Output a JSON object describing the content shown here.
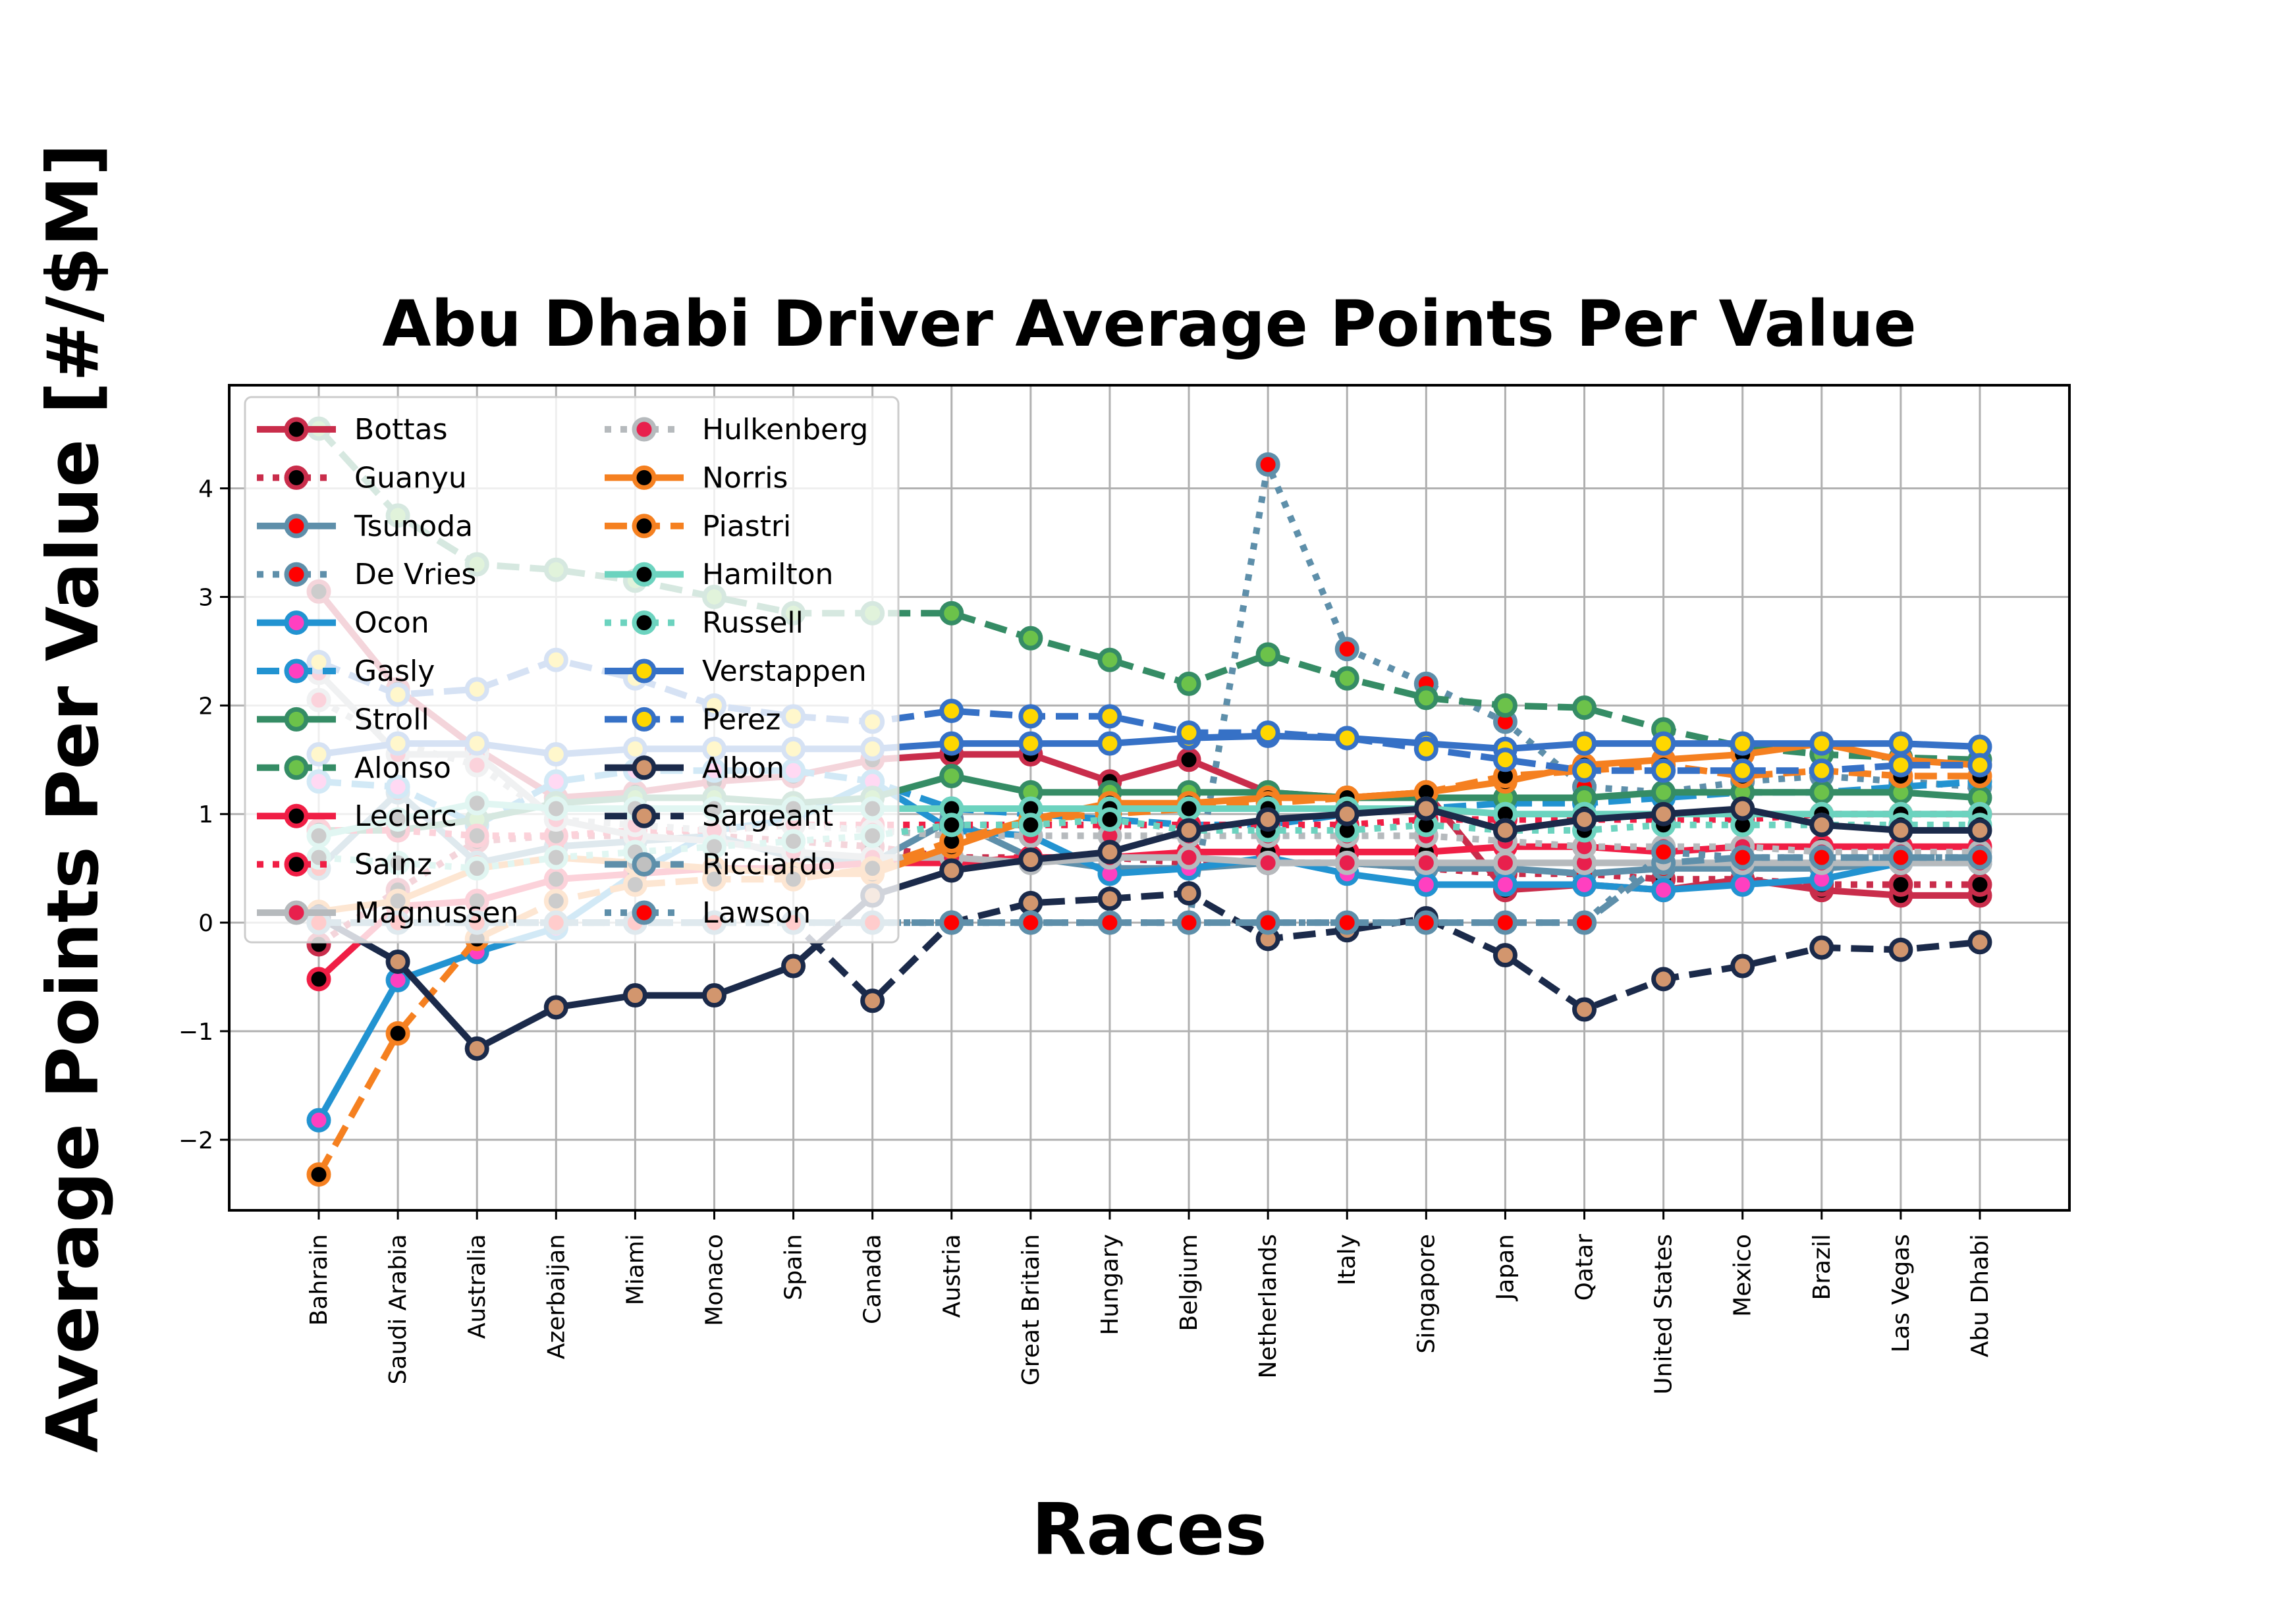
{
  "chart_data": {
    "type": "line",
    "title": "Abu Dhabi Driver Average Points Per Value",
    "xlabel": "Races",
    "ylabel": "Average Points Per Value [#/$M]",
    "ylim": [
      -2.65,
      4.95
    ],
    "yticks": [
      -2,
      -1,
      0,
      1,
      2,
      3,
      4
    ],
    "ytick_labels": [
      "−2",
      "−1",
      "0",
      "1",
      "2",
      "3",
      "4"
    ],
    "grid": true,
    "legend_placement": "top-left",
    "categories": [
      "Bahrain",
      "Saudi Arabia",
      "Australia",
      "Azerbaijan",
      "Miami",
      "Monaco",
      "Spain",
      "Canada",
      "Austria",
      "Great Britain",
      "Hungary",
      "Belgium",
      "Netherlands",
      "Italy",
      "Singapore",
      "Japan",
      "Qatar",
      "United States",
      "Mexico",
      "Brazil",
      "Las Vegas",
      "Abu Dhabi"
    ],
    "series": [
      {
        "name": "Bottas",
        "color": "#c92d4b",
        "marker_face": "#000000",
        "dash": "solid",
        "values": [
          3.05,
          2.15,
          1.6,
          1.15,
          1.2,
          1.3,
          1.35,
          1.5,
          1.55,
          1.55,
          1.3,
          1.5,
          1.2,
          1.15,
          1.2,
          0.3,
          0.35,
          0.3,
          0.4,
          0.3,
          0.25,
          0.25
        ]
      },
      {
        "name": "Guanyu",
        "color": "#c92d4b",
        "marker_face": "#000000",
        "dash": "dotted",
        "values": [
          -0.2,
          0.3,
          0.75,
          0.8,
          0.8,
          0.8,
          0.75,
          0.7,
          0.6,
          0.6,
          0.6,
          0.55,
          0.55,
          0.55,
          0.5,
          0.45,
          0.45,
          0.4,
          0.4,
          0.35,
          0.35,
          0.35
        ]
      },
      {
        "name": "Tsunoda",
        "color": "#5e8faa",
        "marker_face": "#ff0000",
        "dash": "solid",
        "values": [
          0.5,
          1.2,
          0.55,
          0.7,
          0.75,
          0.8,
          0.6,
          0.55,
          0.95,
          0.6,
          0.5,
          0.5,
          0.55,
          0.55,
          0.5,
          0.5,
          0.45,
          0.5,
          0.5,
          0.5,
          0.55,
          0.55
        ]
      },
      {
        "name": "De Vries",
        "color": "#5e8faa",
        "marker_face": "#ff0000",
        "dash": "dotted",
        "values": [
          0.0,
          0.0,
          0.0,
          0.0,
          0.0,
          0.0,
          0.0,
          0.0,
          0.0,
          0.0,
          0.0,
          0.0,
          4.22,
          2.52,
          2.2,
          1.85,
          1.25,
          1.2,
          1.3,
          1.35,
          1.3,
          1.25
        ]
      },
      {
        "name": "Ocon",
        "color": "#2293d1",
        "marker_face": "#ff40c0",
        "dash": "solid",
        "values": [
          -1.82,
          -0.53,
          -0.27,
          -0.05,
          0.45,
          0.85,
          0.95,
          1.3,
          0.85,
          0.8,
          0.45,
          0.5,
          0.6,
          0.45,
          0.35,
          0.35,
          0.35,
          0.3,
          0.35,
          0.4,
          0.55,
          0.55
        ]
      },
      {
        "name": "Gasly",
        "color": "#2293d1",
        "marker_face": "#ff40c0",
        "dash": "dashed",
        "values": [
          1.3,
          1.25,
          0.9,
          1.3,
          1.4,
          1.4,
          1.4,
          1.3,
          1.05,
          1.0,
          0.95,
          0.9,
          0.9,
          1.0,
          1.05,
          1.1,
          1.1,
          1.15,
          1.2,
          1.2,
          1.25,
          1.3
        ]
      },
      {
        "name": "Stroll",
        "color": "#358c65",
        "marker_face": "#6cc24a",
        "dash": "solid",
        "values": [
          0.85,
          0.85,
          0.95,
          1.1,
          1.15,
          1.15,
          1.1,
          1.15,
          1.35,
          1.2,
          1.2,
          1.2,
          1.2,
          1.15,
          1.15,
          1.15,
          1.15,
          1.2,
          1.2,
          1.2,
          1.2,
          1.15
        ]
      },
      {
        "name": "Alonso",
        "color": "#358c65",
        "marker_face": "#6cc24a",
        "dash": "dashed",
        "values": [
          4.55,
          3.75,
          3.3,
          3.25,
          3.15,
          3.0,
          2.85,
          2.85,
          2.85,
          2.62,
          2.42,
          2.2,
          2.47,
          2.25,
          2.07,
          2.0,
          1.98,
          1.78,
          1.62,
          1.55,
          1.52,
          1.5
        ]
      },
      {
        "name": "Leclerc",
        "color": "#f01e45",
        "marker_face": "#000000",
        "dash": "solid",
        "values": [
          -0.52,
          0.15,
          0.2,
          0.4,
          0.45,
          0.5,
          0.5,
          0.55,
          0.55,
          0.6,
          0.6,
          0.65,
          0.65,
          0.65,
          0.65,
          0.7,
          0.7,
          0.65,
          0.7,
          0.7,
          0.7,
          0.7
        ]
      },
      {
        "name": "Sainz",
        "color": "#f01e45",
        "marker_face": "#000000",
        "dash": "dotted",
        "values": [
          0.85,
          0.85,
          0.8,
          0.8,
          0.85,
          0.85,
          0.9,
          0.9,
          0.9,
          0.9,
          0.9,
          0.9,
          0.9,
          0.9,
          0.95,
          0.95,
          0.95,
          0.95,
          0.95,
          1.0,
          1.0,
          1.0
        ]
      },
      {
        "name": "Magnussen",
        "color": "#b6babd",
        "marker_face": "#e8204d",
        "dash": "solid",
        "values": [
          2.3,
          1.55,
          1.55,
          0.95,
          0.8,
          0.75,
          0.65,
          0.6,
          0.6,
          0.55,
          0.6,
          0.6,
          0.55,
          0.55,
          0.55,
          0.55,
          0.55,
          0.55,
          0.55,
          0.55,
          0.55,
          0.55
        ]
      },
      {
        "name": "Hulkenberg",
        "color": "#b6babd",
        "marker_face": "#e8204d",
        "dash": "dotted",
        "values": [
          2.05,
          1.65,
          1.45,
          0.95,
          0.9,
          0.85,
          0.9,
          0.85,
          0.8,
          0.8,
          0.8,
          0.8,
          0.8,
          0.8,
          0.8,
          0.75,
          0.7,
          0.7,
          0.7,
          0.65,
          0.65,
          0.65
        ]
      },
      {
        "name": "Norris",
        "color": "#f58020",
        "marker_face": "#000000",
        "dash": "solid",
        "values": [
          0.1,
          0.2,
          0.5,
          0.6,
          0.55,
          0.5,
          0.45,
          0.45,
          0.7,
          0.95,
          1.1,
          1.1,
          1.15,
          1.15,
          1.2,
          1.3,
          1.45,
          1.5,
          1.55,
          1.65,
          1.5,
          1.45
        ]
      },
      {
        "name": "Piastri",
        "color": "#f58020",
        "marker_face": "#000000",
        "dash": "dashed",
        "values": [
          -2.32,
          -1.02,
          -0.15,
          0.2,
          0.35,
          0.4,
          0.4,
          0.5,
          0.75,
          0.95,
          1.0,
          1.05,
          1.1,
          1.15,
          1.2,
          1.35,
          1.4,
          1.45,
          1.35,
          1.4,
          1.35,
          1.35
        ]
      },
      {
        "name": "Hamilton",
        "color": "#6cd3bf",
        "marker_face": "#000000",
        "dash": "solid",
        "values": [
          0.8,
          0.95,
          1.1,
          1.05,
          1.05,
          1.05,
          1.05,
          1.05,
          1.05,
          1.05,
          1.05,
          1.05,
          1.05,
          1.05,
          1.05,
          1.0,
          1.0,
          1.0,
          1.0,
          1.0,
          1.0,
          1.0
        ]
      },
      {
        "name": "Russell",
        "color": "#6cd3bf",
        "marker_face": "#000000",
        "dash": "dotted",
        "values": [
          0.6,
          0.55,
          0.5,
          0.6,
          0.65,
          0.7,
          0.75,
          0.8,
          0.9,
          0.9,
          0.95,
          0.85,
          0.85,
          0.85,
          0.9,
          0.85,
          0.85,
          0.9,
          0.9,
          0.9,
          0.9,
          0.9
        ]
      },
      {
        "name": "Verstappen",
        "color": "#3671c6",
        "marker_face": "#ffd700",
        "dash": "solid",
        "values": [
          1.55,
          1.65,
          1.65,
          1.55,
          1.6,
          1.6,
          1.6,
          1.6,
          1.65,
          1.65,
          1.65,
          1.7,
          1.72,
          1.7,
          1.65,
          1.6,
          1.65,
          1.65,
          1.65,
          1.65,
          1.65,
          1.62
        ]
      },
      {
        "name": "Perez",
        "color": "#3671c6",
        "marker_face": "#ffd700",
        "dash": "dashed",
        "values": [
          2.4,
          2.1,
          2.15,
          2.42,
          2.25,
          2.0,
          1.9,
          1.85,
          1.95,
          1.9,
          1.9,
          1.75,
          1.75,
          1.7,
          1.6,
          1.5,
          1.4,
          1.4,
          1.4,
          1.4,
          1.45,
          1.45
        ]
      },
      {
        "name": "Albon",
        "color": "#1b2a4a",
        "marker_face": "#d2966e",
        "dash": "solid",
        "values": [
          0.05,
          -0.36,
          -1.16,
          -0.78,
          -0.67,
          -0.67,
          -0.4,
          0.25,
          0.48,
          0.58,
          0.65,
          0.85,
          0.95,
          1.0,
          1.05,
          0.85,
          0.95,
          1.0,
          1.05,
          0.9,
          0.85,
          0.85
        ]
      },
      {
        "name": "Sargeant",
        "color": "#1b2a4a",
        "marker_face": "#d2966e",
        "dash": "dashed",
        "values": [
          0.0,
          0.0,
          0.0,
          0.0,
          0.0,
          0.0,
          0.0,
          -0.72,
          0.0,
          0.18,
          0.22,
          0.27,
          -0.15,
          -0.07,
          0.04,
          -0.3,
          -0.8,
          -0.52,
          -0.4,
          -0.23,
          -0.25,
          -0.18
        ]
      },
      {
        "name": "Ricciardo",
        "color": "#5e8faa",
        "marker_face": "#c0c0c0",
        "dash": "dashed",
        "values": [
          0.0,
          0.0,
          0.0,
          0.0,
          0.0,
          0.0,
          0.0,
          0.0,
          0.0,
          0.0,
          0.0,
          0.0,
          0.0,
          0.0,
          0.0,
          0.0,
          0.0,
          0.55,
          0.6,
          0.6,
          0.6,
          0.6
        ]
      },
      {
        "name": "Lawson",
        "color": "#5e8faa",
        "marker_face": "#ff0000",
        "dash": "dotted",
        "values": [
          0.0,
          0.0,
          0.0,
          0.0,
          0.0,
          0.0,
          0.0,
          0.0,
          0.0,
          0.0,
          0.0,
          0.0,
          0.0,
          0.0,
          0.0,
          0.0,
          0.0,
          0.65,
          0.6,
          0.6,
          0.6,
          0.6
        ]
      }
    ]
  }
}
